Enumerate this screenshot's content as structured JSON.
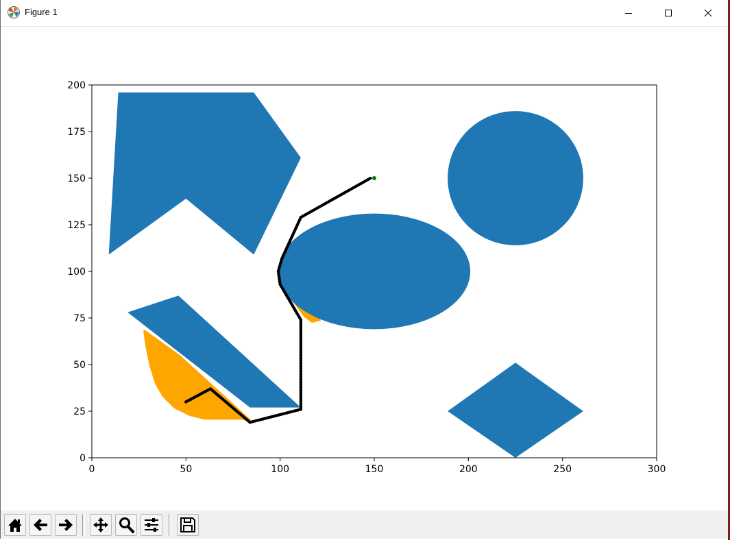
{
  "window": {
    "title": "Figure 1",
    "icon": "matplotlib-icon",
    "controls": [
      "minimize-icon",
      "maximize-icon",
      "close-icon"
    ]
  },
  "toolbar": {
    "buttons": [
      "home-icon",
      "back-arrow-icon",
      "forward-arrow-icon",
      "pan-icon",
      "zoom-icon",
      "configure-subplots-icon",
      "save-icon"
    ]
  },
  "chart_data": {
    "type": "scatter",
    "title": "",
    "xlabel": "",
    "ylabel": "",
    "xlim": [
      0,
      300
    ],
    "ylim": [
      0,
      200
    ],
    "xticks": [
      0,
      50,
      100,
      150,
      200,
      250,
      300
    ],
    "yticks": [
      0,
      25,
      50,
      75,
      100,
      125,
      150,
      175,
      200
    ],
    "grid": false,
    "colors": {
      "obstacle": "#1f77b4",
      "explored": "#ffa500",
      "path": "#000000",
      "goal": "#008000"
    },
    "obstacles": [
      {
        "shape": "polygon",
        "points": [
          [
            14,
            196
          ],
          [
            86,
            196
          ],
          [
            111,
            161
          ],
          [
            86,
            109
          ],
          [
            50,
            139
          ],
          [
            9,
            109
          ]
        ]
      },
      {
        "shape": "circle",
        "center": [
          225,
          150
        ],
        "radius": 36
      },
      {
        "shape": "ellipse",
        "center": [
          150,
          100
        ],
        "rx": 51,
        "ry": 31
      },
      {
        "shape": "polygon",
        "points": [
          [
            19,
            78
          ],
          [
            46,
            87
          ],
          [
            111,
            27
          ],
          [
            84,
            27
          ]
        ]
      },
      {
        "shape": "polygon",
        "points": [
          [
            225,
            51
          ],
          [
            261,
            25
          ],
          [
            225,
            0
          ],
          [
            189,
            25
          ]
        ]
      }
    ],
    "explored_regions": [
      {
        "points": [
          [
            28,
            67
          ],
          [
            29,
            60
          ],
          [
            31,
            50
          ],
          [
            34,
            40
          ],
          [
            38,
            33
          ],
          [
            44,
            27
          ],
          [
            52,
            23
          ],
          [
            60,
            21
          ],
          [
            70,
            21
          ],
          [
            80,
            21
          ],
          [
            84,
            20
          ],
          [
            70,
            33
          ],
          [
            46,
            55
          ],
          [
            28,
            68
          ]
        ]
      },
      {
        "points": [
          [
            103,
            89
          ],
          [
            108,
            83
          ],
          [
            113,
            76
          ],
          [
            117,
            73
          ],
          [
            121,
            74
          ],
          [
            119,
            79
          ],
          [
            115,
            84
          ]
        ]
      }
    ],
    "path": [
      [
        50,
        30
      ],
      [
        63,
        37
      ],
      [
        84,
        19
      ],
      [
        111,
        26
      ],
      [
        111,
        74
      ],
      [
        100,
        93
      ],
      [
        99,
        100
      ],
      [
        101,
        107
      ],
      [
        111,
        129
      ],
      [
        148,
        150
      ]
    ],
    "goal": [
      150,
      150
    ]
  }
}
